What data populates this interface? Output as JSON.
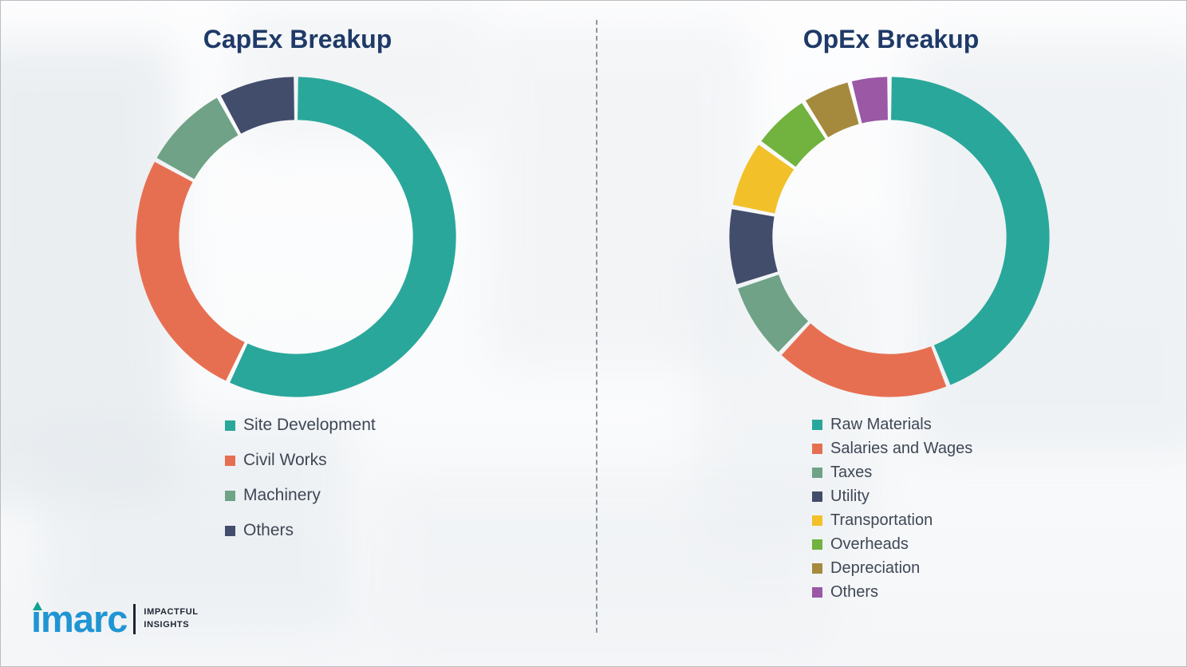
{
  "title_color": "#1f3a68",
  "divider_style": "vertical-dashed",
  "chart_data": [
    {
      "type": "pie",
      "variant": "donut",
      "title": "CapEx Breakup",
      "legend_position": "bottom-left",
      "segments": [
        {
          "label": "Site Development",
          "value": 57,
          "color": "#2aa79b"
        },
        {
          "label": "Civil Works",
          "value": 26,
          "color": "#e76f51"
        },
        {
          "label": "Machinery",
          "value": 9,
          "color": "#6fa287"
        },
        {
          "label": "Others",
          "value": 8,
          "color": "#424d6b"
        }
      ]
    },
    {
      "type": "pie",
      "variant": "donut",
      "title": "OpEx Breakup",
      "legend_position": "bottom-left",
      "segments": [
        {
          "label": "Raw Materials",
          "value": 44,
          "color": "#2aa79b"
        },
        {
          "label": "Salaries and Wages",
          "value": 18,
          "color": "#e76f51"
        },
        {
          "label": "Taxes",
          "value": 8,
          "color": "#6fa287"
        },
        {
          "label": "Utility",
          "value": 8,
          "color": "#424d6b"
        },
        {
          "label": "Transportation",
          "value": 7,
          "color": "#f2c029"
        },
        {
          "label": "Overheads",
          "value": 6,
          "color": "#71b33e"
        },
        {
          "label": "Depreciation",
          "value": 5,
          "color": "#a58a3e"
        },
        {
          "label": "Others",
          "value": 4,
          "color": "#9a58a5"
        }
      ]
    }
  ],
  "logo": {
    "brand": "imarc",
    "brand_color": "#2095d3",
    "accent_color": "#11a392",
    "tagline": [
      "IMPACTFUL",
      "INSIGHTS"
    ]
  }
}
